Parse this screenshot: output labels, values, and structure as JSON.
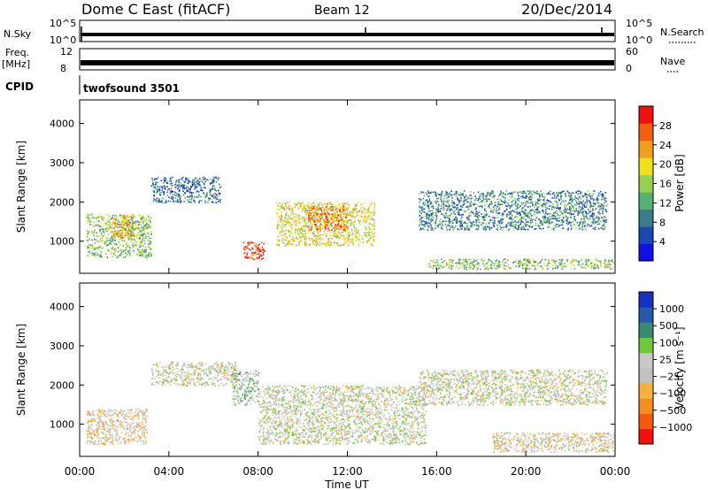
{
  "header": {
    "station": "Dome C East (fitACF)",
    "beam": "Beam 12",
    "date": "20/Dec/2014"
  },
  "status_panels": {
    "nsky_label": "N.Sky",
    "nsearch_label": "N.Search",
    "noise_left_ticks": [
      "10^5",
      "10^0"
    ],
    "noise_right_ticks": [
      "10^5",
      "10^0"
    ],
    "freq_label": "Freq.",
    "freq_unit": "[MHz]",
    "freq_ticks": [
      "12",
      "8"
    ],
    "nave_label": "Nave",
    "nave_ticks": [
      "60",
      "0"
    ],
    "cpid_label": "CPID",
    "cpid_value": "twofsound 3501"
  },
  "colors": {
    "power": [
      "#1010e0",
      "#1848b0",
      "#3a7a8a",
      "#58b070",
      "#96d050",
      "#f0e020",
      "#f0a020",
      "#f06010",
      "#f01010"
    ],
    "velocity": [
      "#f01010",
      "#f05a10",
      "#f58c20",
      "#f5b040",
      "#c0c0c0",
      "#c8c8c8",
      "#70c840",
      "#3a8a70",
      "#2858a8",
      "#1830c0"
    ]
  },
  "chart_data": [
    {
      "type": "heatmap",
      "title": "Power",
      "ylabel": "Slant Range [km]",
      "xlabel": "",
      "yticks": [
        "1000",
        "2000",
        "3000",
        "4000"
      ],
      "ylim": [
        180,
        4600
      ],
      "xticks": [
        "00:00",
        "04:00",
        "08:00",
        "12:00",
        "16:00",
        "20:00",
        "00:00"
      ],
      "xlim": [
        0,
        24
      ],
      "colorbar": {
        "label": "Power [dB]",
        "ticks": [
          "4",
          "8",
          "12",
          "16",
          "20",
          "24",
          "28"
        ],
        "range": [
          0,
          32
        ]
      },
      "scatter_regions": [
        {
          "t0": 0.3,
          "t1": 3.2,
          "r0": 600,
          "r1": 1700,
          "level": 0.45
        },
        {
          "t0": 1.4,
          "t1": 2.4,
          "r0": 1100,
          "r1": 1700,
          "level": 0.7
        },
        {
          "t0": 3.2,
          "t1": 6.3,
          "r0": 2000,
          "r1": 2650,
          "level": 0.25
        },
        {
          "t0": 7.3,
          "t1": 8.3,
          "r0": 550,
          "r1": 1000,
          "level": 0.9
        },
        {
          "t0": 8.8,
          "t1": 13.2,
          "r0": 900,
          "r1": 2000,
          "level": 0.6
        },
        {
          "t0": 10.2,
          "t1": 12.0,
          "r0": 1300,
          "r1": 1900,
          "level": 0.8
        },
        {
          "t0": 15.2,
          "t1": 23.6,
          "r0": 1300,
          "r1": 2300,
          "level": 0.3
        },
        {
          "t0": 15.5,
          "t1": 24.0,
          "r0": 300,
          "r1": 560,
          "level": 0.45
        }
      ]
    },
    {
      "type": "heatmap",
      "title": "Velocity",
      "ylabel": "Slant Range [km]",
      "xlabel": "Time UT",
      "yticks": [
        "1000",
        "2000",
        "3000",
        "4000"
      ],
      "ylim": [
        180,
        4600
      ],
      "xticks": [
        "00:00",
        "04:00",
        "08:00",
        "12:00",
        "16:00",
        "20:00",
        "00:00"
      ],
      "xlim": [
        0,
        24
      ],
      "colorbar": {
        "label": "Velocity [m s⁻¹]",
        "ticks": [
          "1000",
          "500",
          "100",
          "25",
          "−25",
          "−100",
          "−500",
          "−1000"
        ],
        "range": [
          -2000,
          2000
        ]
      },
      "scatter_regions": [
        {
          "t0": 0.3,
          "t1": 3.0,
          "r0": 500,
          "r1": 1400,
          "value": -300
        },
        {
          "t0": 3.2,
          "t1": 7.0,
          "r0": 2000,
          "r1": 2600,
          "value": -50
        },
        {
          "t0": 6.8,
          "t1": 8.0,
          "r0": 1500,
          "r1": 2400,
          "value": 400
        },
        {
          "t0": 8.0,
          "t1": 15.5,
          "r0": 500,
          "r1": 2000,
          "value": 80
        },
        {
          "t0": 15.2,
          "t1": 23.6,
          "r0": 1500,
          "r1": 2400,
          "value": 10
        },
        {
          "t0": 18.5,
          "t1": 24.0,
          "r0": 300,
          "r1": 800,
          "value": -200
        }
      ]
    }
  ]
}
